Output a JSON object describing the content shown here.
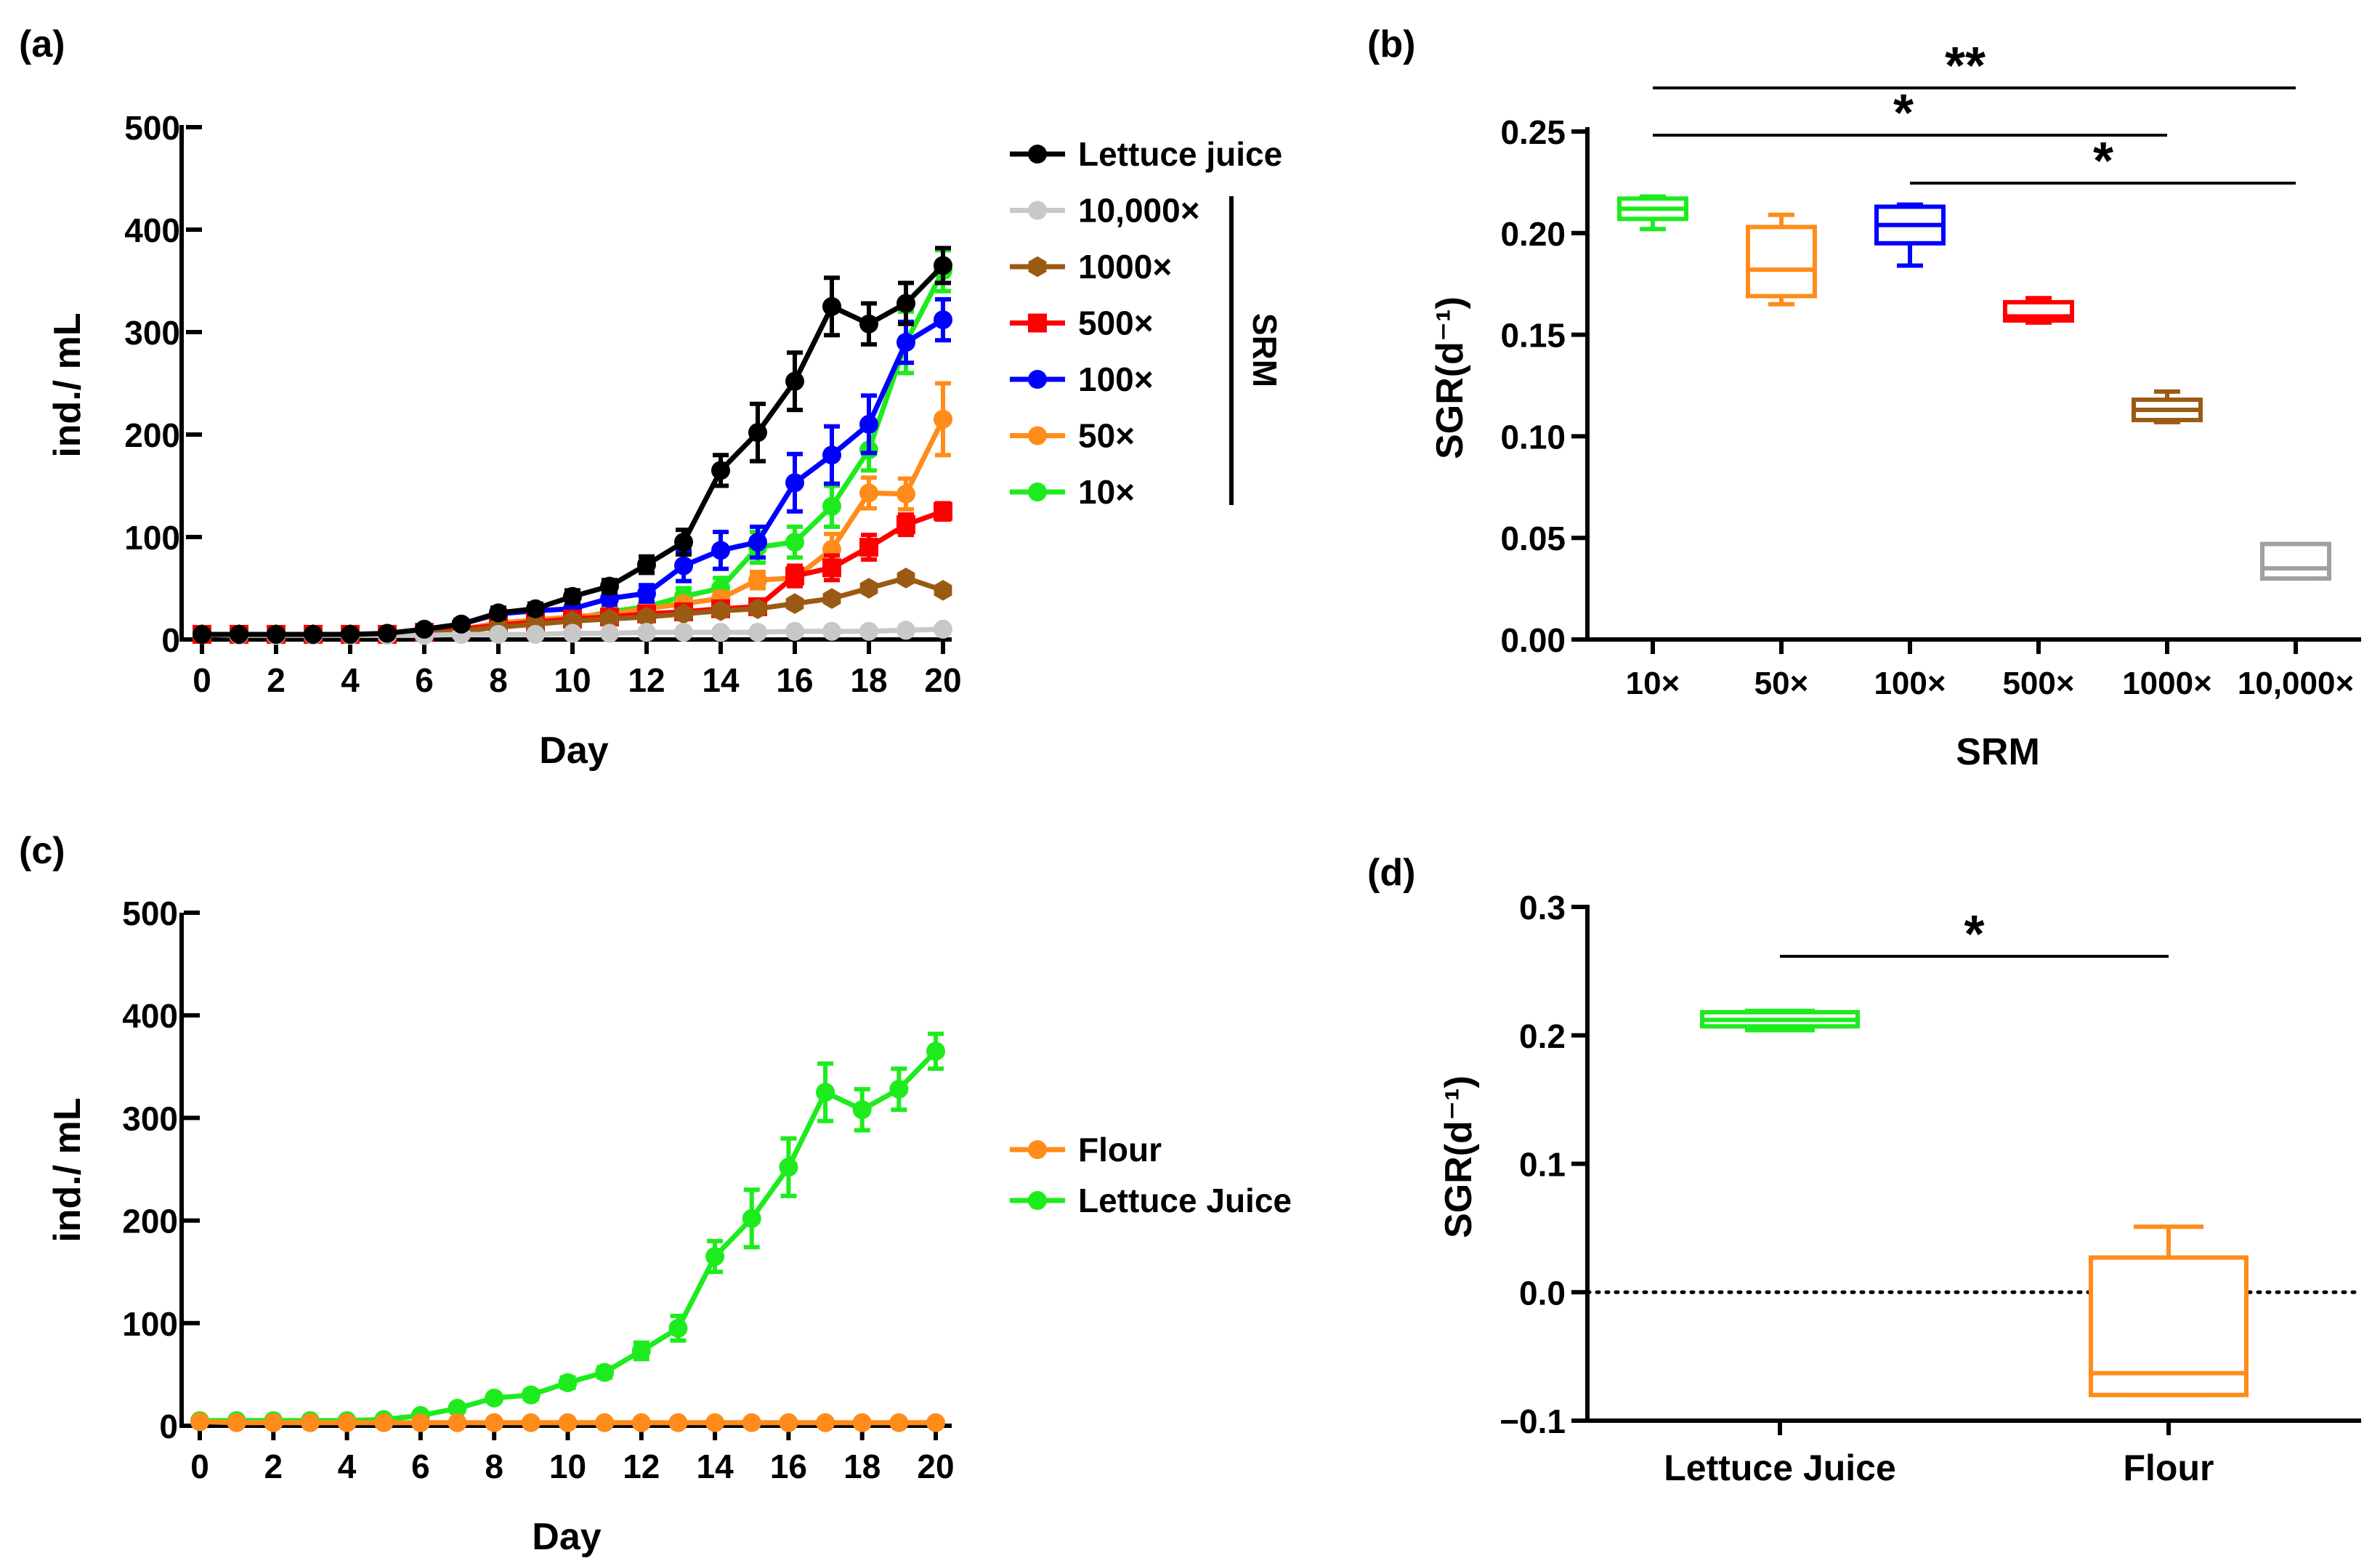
{
  "panels": {
    "a": {
      "label": "(a)",
      "xlabel": "Day",
      "ylabel": "ind./ mL",
      "legend_group_label": "SRM"
    },
    "b": {
      "label": "(b)",
      "xlabel": "SRM",
      "ylabel": "SGR(d⁻¹)"
    },
    "c": {
      "label": "(c)",
      "xlabel": "Day",
      "ylabel": "ind./ mL"
    },
    "d": {
      "label": "(d)",
      "ylabel": "SGR(d⁻¹)"
    }
  },
  "chart_data": [
    {
      "id": "a",
      "type": "line",
      "title": "",
      "xlabel": "Day",
      "ylabel": "ind./ mL",
      "xlim": [
        0,
        20
      ],
      "ylim": [
        0,
        500
      ],
      "xticks": [
        "0",
        "2",
        "4",
        "6",
        "8",
        "10",
        "12",
        "14",
        "16",
        "18",
        "20"
      ],
      "yticks": [
        "0",
        "100",
        "200",
        "300",
        "400",
        "500"
      ],
      "x": [
        0,
        1,
        2,
        3,
        4,
        5,
        6,
        7,
        8,
        9,
        10,
        11,
        12,
        13,
        14,
        15,
        16,
        17,
        18,
        19,
        20
      ],
      "legend_position": "right",
      "series": [
        {
          "name": "Lettuce juice",
          "color": "#000000",
          "marker": "circle",
          "values": [
            5,
            5,
            5,
            5,
            5,
            6,
            10,
            15,
            26,
            30,
            42,
            52,
            73,
            95,
            165,
            202,
            252,
            325,
            308,
            328,
            365
          ],
          "errors": [
            2,
            2,
            2,
            2,
            2,
            2,
            3,
            4,
            5,
            5,
            6,
            6,
            8,
            12,
            15,
            28,
            28,
            28,
            20,
            20,
            17
          ]
        },
        {
          "name": "10,000×",
          "color": "#c8c8c8",
          "marker": "circle",
          "values": [
            5,
            4,
            4,
            4,
            4,
            4,
            4,
            5,
            5,
            5,
            6,
            6,
            7,
            7,
            7,
            7,
            8,
            8,
            8,
            9,
            10
          ],
          "errors": [
            1,
            1,
            1,
            1,
            1,
            1,
            1,
            1,
            1,
            1,
            1,
            1,
            1,
            1,
            1,
            1,
            1,
            1,
            1,
            1,
            1
          ]
        },
        {
          "name": "1000×",
          "color": "#9b5a14",
          "marker": "hexagon",
          "values": [
            5,
            5,
            5,
            5,
            5,
            5,
            6,
            8,
            12,
            15,
            18,
            20,
            22,
            25,
            28,
            30,
            35,
            40,
            50,
            60,
            48
          ],
          "errors": [
            1,
            1,
            1,
            1,
            1,
            1,
            1,
            2,
            2,
            2,
            2,
            2,
            3,
            3,
            3,
            3,
            3,
            3,
            3,
            3,
            3
          ]
        },
        {
          "name": "500×",
          "color": "#ff0000",
          "marker": "square",
          "values": [
            5,
            5,
            5,
            5,
            5,
            5,
            7,
            10,
            14,
            17,
            20,
            22,
            25,
            27,
            30,
            32,
            62,
            70,
            90,
            112,
            125
          ],
          "errors": [
            1,
            1,
            1,
            1,
            1,
            1,
            2,
            2,
            3,
            3,
            3,
            3,
            3,
            3,
            4,
            4,
            10,
            12,
            12,
            10,
            8
          ]
        },
        {
          "name": "100×",
          "color": "#0000ff",
          "marker": "circle",
          "values": [
            5,
            5,
            5,
            5,
            5,
            5,
            8,
            15,
            25,
            28,
            30,
            40,
            45,
            72,
            87,
            95,
            153,
            180,
            210,
            290,
            312
          ],
          "errors": [
            1,
            1,
            1,
            1,
            1,
            1,
            2,
            3,
            4,
            4,
            5,
            6,
            8,
            15,
            18,
            15,
            28,
            28,
            28,
            20,
            20
          ]
        },
        {
          "name": "50×",
          "color": "#ff8c1a",
          "marker": "circle",
          "values": [
            5,
            5,
            5,
            5,
            5,
            5,
            6,
            10,
            16,
            19,
            22,
            25,
            30,
            35,
            40,
            58,
            60,
            88,
            143,
            142,
            215
          ],
          "errors": [
            1,
            1,
            1,
            1,
            1,
            1,
            1,
            2,
            3,
            3,
            3,
            4,
            4,
            5,
            6,
            8,
            8,
            15,
            15,
            15,
            35
          ]
        },
        {
          "name": "10×",
          "color": "#1eeb1e",
          "marker": "circle",
          "values": [
            5,
            5,
            5,
            5,
            5,
            5,
            7,
            10,
            15,
            18,
            20,
            27,
            32,
            42,
            50,
            90,
            95,
            130,
            185,
            290,
            360
          ],
          "errors": [
            1,
            1,
            1,
            1,
            1,
            1,
            2,
            2,
            3,
            3,
            3,
            4,
            5,
            8,
            10,
            15,
            15,
            20,
            20,
            30,
            20
          ]
        }
      ]
    },
    {
      "id": "b",
      "type": "box",
      "title": "",
      "xlabel": "SRM",
      "ylabel": "SGR(d⁻¹)",
      "ylim": [
        0,
        0.25
      ],
      "yticks": [
        "0.00",
        "0.05",
        "0.10",
        "0.15",
        "0.20",
        "0.25"
      ],
      "categories": [
        "10×",
        "50×",
        "100×",
        "500×",
        "1000×",
        "10,000×"
      ],
      "colors": [
        "#1eeb1e",
        "#ff8c1a",
        "#0000ff",
        "#ff0000",
        "#9b5a14",
        "#a0a0a0"
      ],
      "boxes": [
        {
          "min": 0.202,
          "q1": 0.207,
          "median": 0.212,
          "q3": 0.217,
          "max": 0.218
        },
        {
          "min": 0.165,
          "q1": 0.169,
          "median": 0.182,
          "q3": 0.203,
          "max": 0.209
        },
        {
          "min": 0.184,
          "q1": 0.195,
          "median": 0.204,
          "q3": 0.213,
          "max": 0.214
        },
        {
          "min": 0.156,
          "q1": 0.157,
          "median": 0.159,
          "q3": 0.166,
          "max": 0.168
        },
        {
          "min": 0.107,
          "q1": 0.108,
          "median": 0.113,
          "q3": 0.118,
          "max": 0.122
        },
        {
          "min": 0.03,
          "q1": 0.03,
          "median": 0.035,
          "q3": 0.047,
          "max": 0.047
        }
      ],
      "significance": [
        {
          "from": 0,
          "to": 5,
          "label": "**"
        },
        {
          "from": 0,
          "to": 4,
          "label": "*"
        },
        {
          "from": 2,
          "to": 5,
          "label": "*"
        }
      ]
    },
    {
      "id": "c",
      "type": "line",
      "title": "",
      "xlabel": "Day",
      "ylabel": "ind./ mL",
      "xlim": [
        0,
        20
      ],
      "ylim": [
        0,
        500
      ],
      "xticks": [
        "0",
        "2",
        "4",
        "6",
        "8",
        "10",
        "12",
        "14",
        "16",
        "18",
        "20"
      ],
      "yticks": [
        "0",
        "100",
        "200",
        "300",
        "400",
        "500"
      ],
      "x": [
        0,
        1,
        2,
        3,
        4,
        5,
        6,
        7,
        8,
        9,
        10,
        11,
        12,
        13,
        14,
        15,
        16,
        17,
        18,
        19,
        20
      ],
      "legend_position": "right",
      "series": [
        {
          "name": "Flour",
          "color": "#ff8c1a",
          "marker": "circle",
          "values": [
            4,
            3,
            3,
            3,
            3,
            3,
            3,
            3,
            3,
            3,
            3,
            3,
            3,
            3,
            3,
            3,
            3,
            3,
            3,
            3,
            3
          ],
          "errors": [
            1,
            1,
            1,
            1,
            1,
            1,
            1,
            1,
            1,
            1,
            1,
            1,
            1,
            1,
            1,
            1,
            1,
            1,
            1,
            1,
            1
          ]
        },
        {
          "name": "Lettuce Juice",
          "color": "#1eeb1e",
          "marker": "circle",
          "values": [
            5,
            5,
            5,
            5,
            5,
            6,
            10,
            17,
            27,
            30,
            42,
            52,
            73,
            95,
            165,
            202,
            252,
            325,
            308,
            328,
            365
          ],
          "errors": [
            1,
            1,
            1,
            1,
            1,
            1,
            2,
            3,
            3,
            4,
            5,
            5,
            8,
            12,
            15,
            28,
            28,
            28,
            20,
            20,
            17
          ]
        }
      ]
    },
    {
      "id": "d",
      "type": "box",
      "title": "",
      "xlabel": "",
      "ylabel": "SGR(d⁻¹)",
      "ylim": [
        -0.1,
        0.3
      ],
      "yticks": [
        "−0.1",
        "0.0",
        "0.1",
        "0.2",
        "0.3"
      ],
      "reference_line": 0,
      "categories": [
        "Lettuce Juice",
        "Flour"
      ],
      "colors": [
        "#1eeb1e",
        "#ff8c1a"
      ],
      "boxes": [
        {
          "min": 0.204,
          "q1": 0.207,
          "median": 0.212,
          "q3": 0.218,
          "max": 0.219
        },
        {
          "min": -0.08,
          "q1": -0.08,
          "median": -0.063,
          "q3": 0.027,
          "max": 0.051
        }
      ],
      "significance": [
        {
          "from": 0,
          "to": 1,
          "label": "*"
        }
      ]
    }
  ]
}
